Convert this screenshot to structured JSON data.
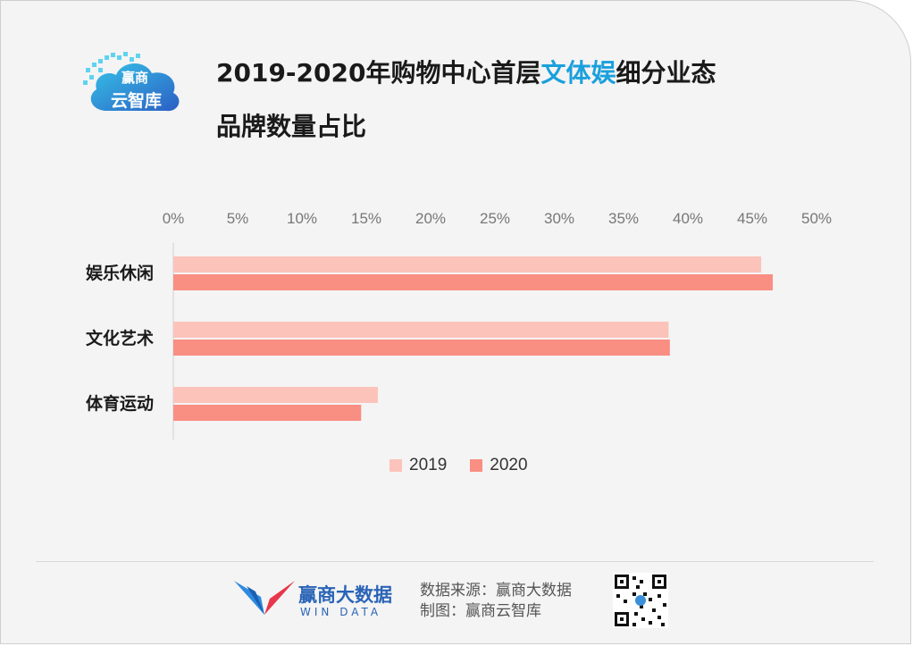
{
  "logo": {
    "line1": "赢商",
    "line2": "云智库"
  },
  "title": {
    "part1": "2019-2020年购物中心首层",
    "highlight": "文体娱",
    "part2": "细分业态",
    "line2": "品牌数量占比"
  },
  "colors": {
    "series2019": "#fcc3ba",
    "series2020": "#f98e82",
    "highlight": "#1aa0dc",
    "brand": "#2a64b7"
  },
  "chart_data": {
    "type": "bar",
    "orientation": "horizontal",
    "categories": [
      "娱乐休闲",
      "文化艺术",
      "体育运动"
    ],
    "series": [
      {
        "name": "2019",
        "values": [
          45.7,
          38.5,
          15.9
        ]
      },
      {
        "name": "2020",
        "values": [
          46.6,
          38.6,
          14.6
        ]
      }
    ],
    "xlim": [
      0,
      50
    ],
    "xticks": [
      "0%",
      "5%",
      "10%",
      "15%",
      "20%",
      "25%",
      "30%",
      "35%",
      "40%",
      "45%",
      "50%"
    ],
    "grid": false,
    "legend": "bottom"
  },
  "footer": {
    "brand_name": "赢商大数据",
    "brand_en": "WIN DATA",
    "source_line1": "数据来源：赢商大数据",
    "source_line2": "制图：赢商云智库"
  }
}
